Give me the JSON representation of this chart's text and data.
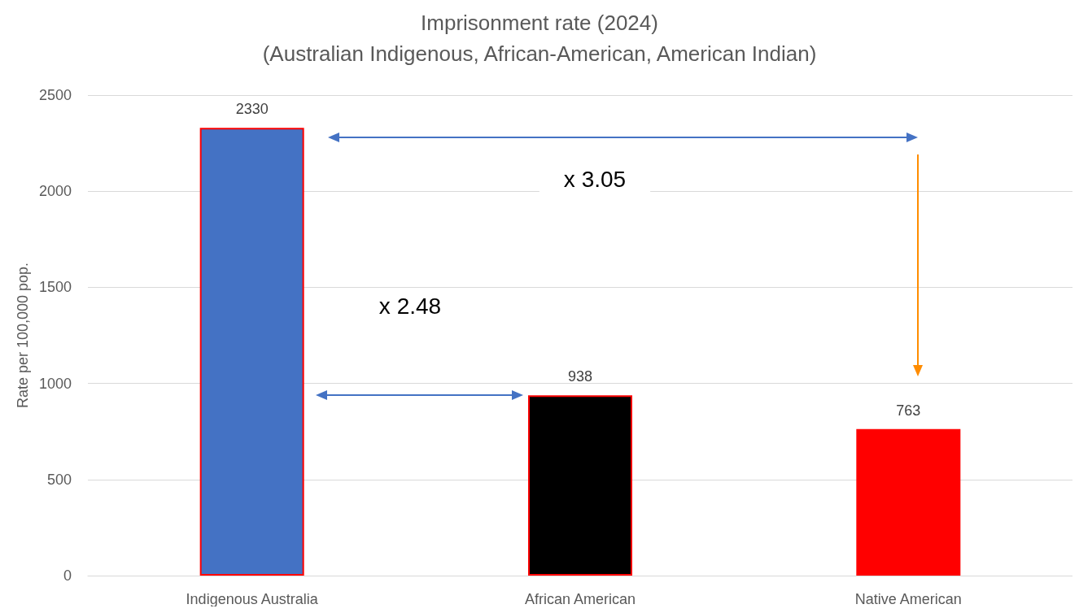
{
  "chart_data": {
    "type": "bar",
    "title": "Imprisonment rate (2024)",
    "subtitle": "(Australian Indigenous, African-American, American Indian)",
    "ylabel": "Rate per 100,000 pop.",
    "categories": [
      "Indigenous Australia",
      "African American",
      "Native American"
    ],
    "values": [
      2330,
      938,
      763
    ],
    "colors": [
      "#4472c4",
      "#000000",
      "#ff0000"
    ],
    "ylim": [
      0,
      2500
    ],
    "yticks": [
      0,
      500,
      1000,
      1500,
      2000,
      2500
    ],
    "grid": "y",
    "data_labels": true,
    "annotations": [
      "x 3.05",
      "x 2.48"
    ]
  }
}
